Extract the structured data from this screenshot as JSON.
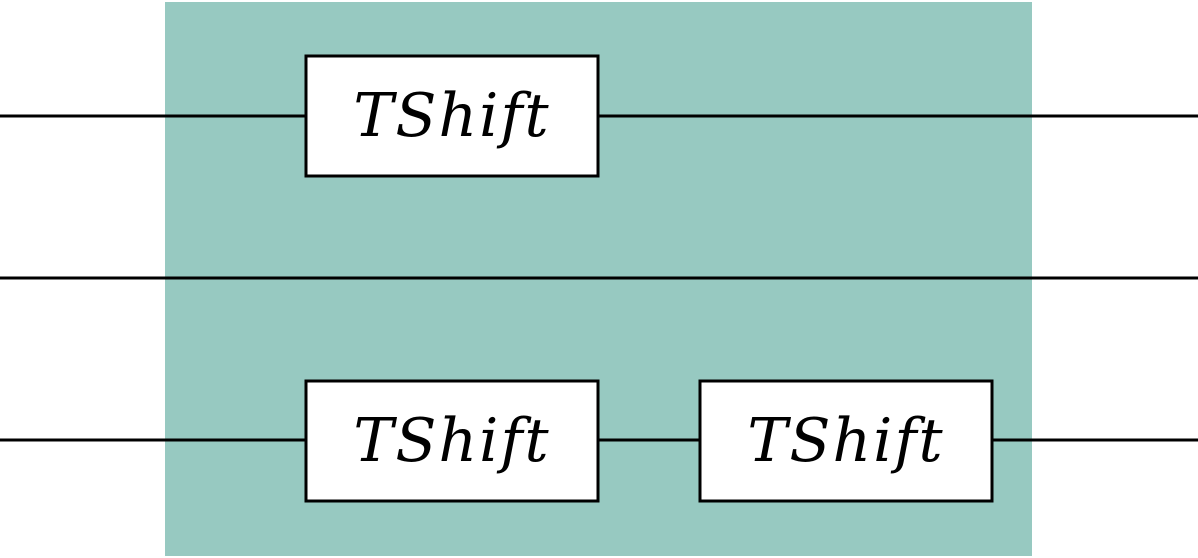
{
  "diagram": {
    "type": "quantum-circuit",
    "region_color": "#97C9C1",
    "wire_color": "#000000",
    "gate_fill": "#ffffff",
    "wires": [
      {
        "id": "wire-1",
        "gates": [
          "gate-1"
        ]
      },
      {
        "id": "wire-2",
        "gates": []
      },
      {
        "id": "wire-3",
        "gates": [
          "gate-2",
          "gate-3"
        ]
      }
    ],
    "gates": [
      {
        "id": "gate-1",
        "label": "TShift"
      },
      {
        "id": "gate-2",
        "label": "TShift"
      },
      {
        "id": "gate-3",
        "label": "TShift"
      }
    ]
  }
}
